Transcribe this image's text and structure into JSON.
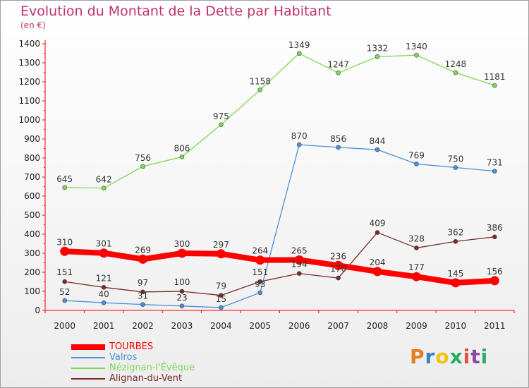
{
  "title": "Evolution du Montant de la Dette par Habitant",
  "subtitle": "(en €)",
  "logo": {
    "letters": [
      "P",
      "r",
      "o",
      "x",
      "i",
      "t",
      "i"
    ],
    "colors": [
      "#e67e22",
      "#2e86c1",
      "#f1c40f",
      "#27ae60",
      "#e74c3c",
      "#8e44ad",
      "#27ae60"
    ]
  },
  "chart_data": {
    "type": "line",
    "title": "Evolution du Montant de la Dette par Habitant",
    "subtitle": "(en €)",
    "xlabel": "",
    "ylabel": "",
    "ylim": [
      0,
      1400
    ],
    "yticks": [
      0,
      100,
      200,
      300,
      400,
      500,
      600,
      700,
      800,
      900,
      1000,
      1100,
      1200,
      1300,
      1400
    ],
    "x": [
      "2000",
      "2001",
      "2002",
      "2003",
      "2004",
      "2005",
      "2006",
      "2007",
      "2008",
      "2009",
      "2010",
      "2011"
    ],
    "grid": false,
    "legend_position": "bottom-left",
    "series": [
      {
        "name": "TOURBES",
        "color": "#ff0000",
        "values": [
          310,
          301,
          269,
          300,
          297,
          264,
          265,
          236,
          204,
          177,
          145,
          156
        ]
      },
      {
        "name": "Valros",
        "color": "#4a90d9",
        "values": [
          52,
          40,
          31,
          23,
          15,
          93,
          870,
          856,
          844,
          769,
          750,
          731
        ]
      },
      {
        "name": "Nézignan-l'Évêque",
        "color": "#7ed957",
        "values": [
          645,
          642,
          756,
          806,
          975,
          1158,
          1349,
          1247,
          1332,
          1340,
          1248,
          1181
        ]
      },
      {
        "name": "Alignan-du-Vent",
        "color": "#7a2a2a",
        "values": [
          151,
          121,
          97,
          100,
          79,
          151,
          194,
          170,
          409,
          328,
          362,
          386
        ]
      }
    ]
  }
}
